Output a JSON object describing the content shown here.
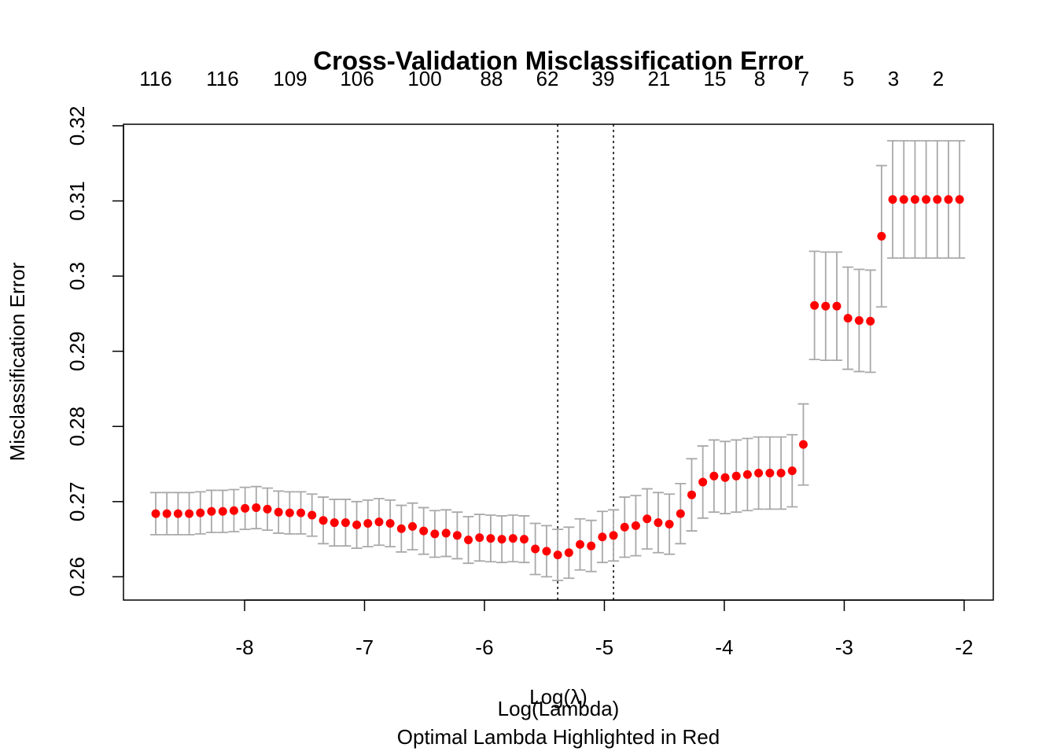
{
  "chart_data": {
    "type": "errorbar",
    "title": "Cross-Validation Misclassification Error",
    "xlabel": "Log(λ)",
    "xlabel2": "Log(Lambda)",
    "subtitle": "Optimal Lambda Highlighted in Red",
    "ylabel": "Misclassification Error",
    "x": [
      -8.741,
      -8.648,
      -8.555,
      -8.462,
      -8.369,
      -8.276,
      -8.182,
      -8.089,
      -7.996,
      -7.903,
      -7.81,
      -7.717,
      -7.624,
      -7.531,
      -7.438,
      -7.344,
      -7.251,
      -7.158,
      -7.065,
      -6.972,
      -6.879,
      -6.786,
      -6.693,
      -6.6,
      -6.507,
      -6.414,
      -6.32,
      -6.227,
      -6.134,
      -6.041,
      -5.948,
      -5.855,
      -5.762,
      -5.669,
      -5.576,
      -5.482,
      -5.389,
      -5.296,
      -5.203,
      -5.11,
      -5.017,
      -4.924,
      -4.831,
      -4.738,
      -4.644,
      -4.551,
      -4.458,
      -4.365,
      -4.272,
      -4.179,
      -4.086,
      -3.993,
      -3.9,
      -3.807,
      -3.714,
      -3.62,
      -3.527,
      -3.434,
      -3.341,
      -3.248,
      -3.155,
      -3.062,
      -2.969,
      -2.876,
      -2.782,
      -2.689,
      -2.596,
      -2.503,
      -2.41,
      -2.317,
      -2.224,
      -2.131,
      -2.038
    ],
    "series": [
      {
        "color": "#ff0000",
        "error_color": "#a9a9a9",
        "values": [
          0.2684,
          0.2684,
          0.2684,
          0.2684,
          0.2685,
          0.2687,
          0.2687,
          0.2688,
          0.2691,
          0.2692,
          0.269,
          0.2686,
          0.2685,
          0.2685,
          0.2682,
          0.2675,
          0.2672,
          0.2672,
          0.2669,
          0.2671,
          0.2673,
          0.2671,
          0.2664,
          0.2667,
          0.2661,
          0.2657,
          0.2658,
          0.2655,
          0.2649,
          0.2652,
          0.2651,
          0.265,
          0.2651,
          0.265,
          0.2637,
          0.2634,
          0.2629,
          0.2632,
          0.2643,
          0.2641,
          0.2653,
          0.2655,
          0.2666,
          0.2668,
          0.2677,
          0.2672,
          0.267,
          0.2684,
          0.2709,
          0.2726,
          0.2734,
          0.2732,
          0.2734,
          0.2736,
          0.2738,
          0.2738,
          0.2738,
          0.2741,
          0.2776,
          0.2961,
          0.296,
          0.296,
          0.2944,
          0.2941,
          0.294,
          0.3053,
          0.3102,
          0.3102,
          0.3102,
          0.3102,
          0.3102,
          0.3102,
          0.3102
        ],
        "errors": [
          0.0028,
          0.0028,
          0.0028,
          0.0028,
          0.0028,
          0.0028,
          0.0028,
          0.0028,
          0.0028,
          0.0028,
          0.0028,
          0.0028,
          0.0028,
          0.0028,
          0.0028,
          0.0031,
          0.0031,
          0.0031,
          0.0031,
          0.0031,
          0.0031,
          0.0031,
          0.0031,
          0.0031,
          0.0031,
          0.0031,
          0.0031,
          0.0031,
          0.0031,
          0.0031,
          0.0031,
          0.0031,
          0.0031,
          0.0031,
          0.0034,
          0.0034,
          0.0034,
          0.0034,
          0.0034,
          0.0034,
          0.0034,
          0.0034,
          0.004,
          0.004,
          0.004,
          0.004,
          0.004,
          0.004,
          0.0048,
          0.0048,
          0.0048,
          0.0048,
          0.0048,
          0.0048,
          0.0048,
          0.0048,
          0.0048,
          0.0048,
          0.0054,
          0.0072,
          0.0072,
          0.0072,
          0.0068,
          0.0068,
          0.0068,
          0.0094,
          0.0078,
          0.0078,
          0.0078,
          0.0078,
          0.0078,
          0.0078,
          0.0078
        ]
      }
    ],
    "vlines": [
      -5.389,
      -4.924
    ],
    "xlim": [
      -9.01,
      -1.757
    ],
    "ylim": [
      0.2569,
      0.3202
    ],
    "xticks": [
      -8,
      -7,
      -6,
      -5,
      -4,
      -3,
      -2
    ],
    "yticks": [
      0.26,
      0.27,
      0.28,
      0.29,
      0.3,
      0.31,
      0.32
    ],
    "top_ticks": [
      {
        "value": -8.741,
        "label": "116"
      },
      {
        "value": -8.184,
        "label": "116"
      },
      {
        "value": -7.62,
        "label": "109"
      },
      {
        "value": -7.062,
        "label": "106"
      },
      {
        "value": -6.498,
        "label": "100"
      },
      {
        "value": -5.941,
        "label": "88"
      },
      {
        "value": -5.475,
        "label": "62"
      },
      {
        "value": -5.01,
        "label": "39"
      },
      {
        "value": -4.544,
        "label": "21"
      },
      {
        "value": -4.079,
        "label": "15"
      },
      {
        "value": -3.705,
        "label": "8"
      },
      {
        "value": -3.338,
        "label": "7"
      },
      {
        "value": -2.964,
        "label": "5"
      },
      {
        "value": -2.59,
        "label": "3"
      },
      {
        "value": -2.216,
        "label": "2"
      }
    ]
  }
}
